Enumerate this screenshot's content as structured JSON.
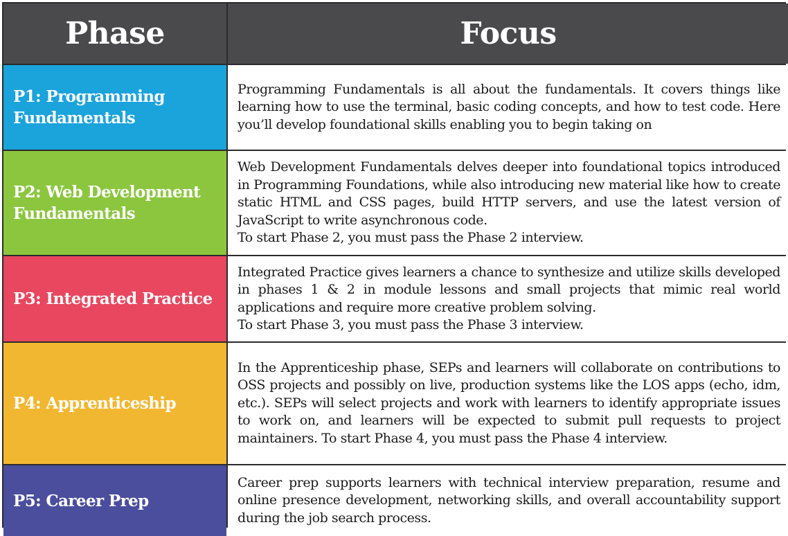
{
  "header": {
    "phase": "Phase",
    "focus": "Focus"
  },
  "colors": {
    "header_bg": "#4a4a4c",
    "p1": "#1ba3dc",
    "p2": "#8cc63f",
    "p3": "#e8475f",
    "p4": "#f2b731",
    "p5": "#4b4e9c"
  },
  "rows": [
    {
      "phase": "P1: Programming Fundamentals",
      "focus": "Programming Fundamentals is all about the fundamentals. It covers things like learning how to use the terminal, basic coding concepts, and how to test code. Here you’ll develop foundational skills enabling you to begin taking on",
      "note": ""
    },
    {
      "phase": "P2: Web Development Fundamentals",
      "focus": "Web Development Fundamentals delves deeper into foundational topics introduced in Programming Foundations, while also introducing new material like how to create static HTML and CSS pages, build HTTP servers, and use the latest version of JavaScript to write asynchronous code.",
      "note": "To start Phase 2, you must pass the Phase 2 interview."
    },
    {
      "phase": "P3: Integrated Practice",
      "focus": "Integrated Practice gives learners a chance to synthesize and utilize skills developed in phases 1 & 2 in module lessons and small projects that mimic real world applications and require more creative problem solving.",
      "note": "To start Phase 3, you must pass the Phase 3 interview."
    },
    {
      "phase": "P4: Apprenticeship",
      "focus": "In the Apprenticeship phase, SEPs and learners will collaborate on contributions to OSS projects and possibly on live, production systems like the LOS apps (echo, idm, etc.). SEPs will select projects and work with learners to identify appropriate issues to work on, and learners will be expected to submit pull requests to project maintainers. To start Phase 4, you must pass the Phase 4 interview.",
      "note": ""
    },
    {
      "phase": "P5: Career Prep",
      "focus": "Career prep supports learners with technical interview preparation, resume and online presence development, networking skills, and overall accountability support during the job search process.",
      "note": ""
    }
  ]
}
